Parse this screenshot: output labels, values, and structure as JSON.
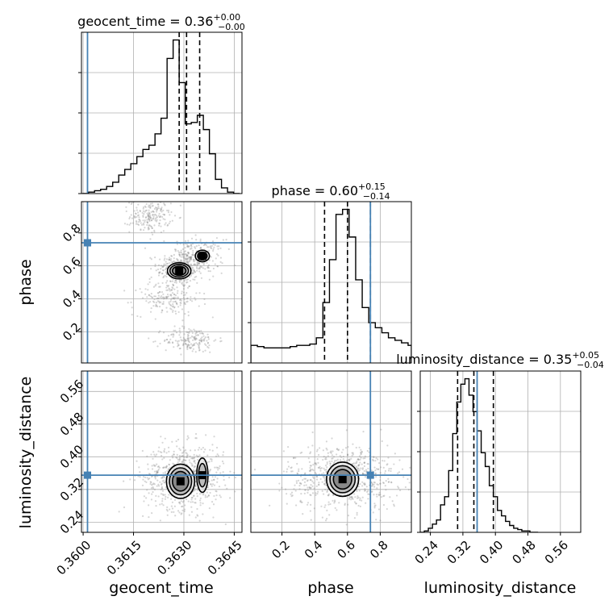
{
  "chart_data": {
    "type": "corner",
    "params": [
      "geocent_time",
      "phase",
      "luminosity_distance"
    ],
    "truths": [
      0.36013,
      0.74,
      0.355
    ],
    "truth_color": "#4682b4",
    "ranges": {
      "geocent_time": [
        0.35995,
        0.36473
      ],
      "phase": [
        0.01,
        0.99
      ],
      "luminosity_distance": [
        0.215,
        0.61
      ]
    },
    "ticks": {
      "geocent_time": [
        0.36,
        0.3615,
        0.363,
        0.3645
      ],
      "phase": [
        0.2,
        0.4,
        0.6,
        0.8
      ],
      "luminosity_distance": [
        0.24,
        0.32,
        0.4,
        0.48,
        0.56
      ]
    },
    "tick_labels": {
      "geocent_time": [
        "0.3600",
        "0.3615",
        "0.3630",
        "0.3645"
      ],
      "phase": [
        "0.2",
        "0.4",
        "0.6",
        "0.8"
      ],
      "luminosity_distance": [
        "0.24",
        "0.32",
        "0.40",
        "0.48",
        "0.56"
      ]
    },
    "axis_labels": {
      "x": [
        "geocent_time",
        "phase",
        "luminosity_distance"
      ],
      "y": [
        "phase",
        "luminosity_distance"
      ]
    },
    "titles": [
      {
        "param": "geocent_time",
        "median": "0.36",
        "plus": "+0.00",
        "minus": "−0.00"
      },
      {
        "param": "phase",
        "median": "0.60",
        "plus": "+0.15",
        "minus": "−0.14"
      },
      {
        "param": "luminosity_distance",
        "median": "0.35",
        "plus": "+0.05",
        "minus": "−0.04"
      }
    ],
    "quantiles": {
      "geocent_time": [
        0.36286,
        0.36308,
        0.36347
      ],
      "phase": [
        0.46,
        0.6,
        0.74
      ],
      "luminosity_distance": [
        0.307,
        0.347,
        0.395
      ]
    },
    "histograms": {
      "geocent_time": {
        "edges": [
          0.35998,
          0.36016,
          0.36034,
          0.36052,
          0.3607,
          0.36088,
          0.36106,
          0.36124,
          0.36142,
          0.3616,
          0.36178,
          0.36196,
          0.36214,
          0.36232,
          0.3625,
          0.36268,
          0.36286,
          0.36304,
          0.36322,
          0.3634,
          0.36358,
          0.36376,
          0.36394,
          0.36412,
          0.3643,
          0.36448,
          0.36466
        ],
        "counts": [
          0,
          1,
          2,
          3,
          5,
          8,
          13,
          17,
          21,
          26,
          31,
          34,
          42,
          53,
          95,
          108,
          78,
          49,
          50,
          55,
          45,
          28,
          10,
          4,
          1,
          0
        ]
      },
      "phase": {
        "edges": [
          0.01,
          0.05,
          0.09,
          0.13,
          0.17,
          0.21,
          0.25,
          0.29,
          0.33,
          0.37,
          0.41,
          0.45,
          0.49,
          0.53,
          0.57,
          0.61,
          0.65,
          0.69,
          0.73,
          0.77,
          0.81,
          0.85,
          0.89,
          0.93,
          0.97,
          0.99
        ],
        "counts": [
          14,
          13,
          12,
          12,
          12,
          12,
          13,
          14,
          14,
          15,
          20,
          48,
          82,
          118,
          122,
          100,
          66,
          44,
          32,
          28,
          24,
          20,
          18,
          16,
          14
        ]
      },
      "luminosity_distance": {
        "edges": [
          0.215,
          0.225,
          0.235,
          0.245,
          0.255,
          0.265,
          0.275,
          0.285,
          0.295,
          0.305,
          0.315,
          0.325,
          0.335,
          0.345,
          0.355,
          0.365,
          0.375,
          0.385,
          0.395,
          0.405,
          0.415,
          0.425,
          0.435,
          0.445,
          0.455,
          0.465,
          0.475,
          0.485,
          0.495,
          0.505
        ],
        "counts": [
          0,
          1,
          3,
          6,
          9,
          20,
          26,
          45,
          72,
          95,
          108,
          112,
          100,
          88,
          74,
          58,
          48,
          34,
          26,
          16,
          12,
          8,
          5,
          3,
          2,
          1,
          1,
          0,
          0
        ]
      }
    },
    "scatter_samples": [
      {
        "x": "geocent_time",
        "y": "phase",
        "modes": [
          {
            "cx": 0.3629,
            "cy": 0.58,
            "sx": 0.00035,
            "sy": 0.06,
            "n": 300
          },
          {
            "cx": 0.3634,
            "cy": 0.66,
            "sx": 0.0004,
            "sy": 0.05,
            "n": 200
          },
          {
            "cx": 0.362,
            "cy": 0.9,
            "sx": 0.0003,
            "sy": 0.05,
            "n": 200
          },
          {
            "cx": 0.3625,
            "cy": 0.4,
            "sx": 0.0005,
            "sy": 0.05,
            "n": 180
          },
          {
            "cx": 0.3632,
            "cy": 0.15,
            "sx": 0.0004,
            "sy": 0.04,
            "n": 180
          }
        ]
      },
      {
        "x": "geocent_time",
        "y": "luminosity_distance",
        "modes": [
          {
            "cx": 0.363,
            "cy": 0.35,
            "sx": 0.0006,
            "sy": 0.04,
            "n": 700
          }
        ]
      },
      {
        "x": "phase",
        "y": "luminosity_distance",
        "modes": [
          {
            "cx": 0.58,
            "cy": 0.35,
            "sx": 0.17,
            "sy": 0.04,
            "n": 700
          }
        ]
      }
    ],
    "density_peaks": [
      {
        "x": "geocent_time",
        "y": "phase",
        "cx": 0.36286,
        "cy": 0.57,
        "rx": 0.00025,
        "ry": 0.035,
        "levels": 3
      },
      {
        "x": "geocent_time",
        "y": "phase",
        "cx": 0.36355,
        "cy": 0.66,
        "rx": 0.00015,
        "ry": 0.025,
        "levels": 2
      },
      {
        "x": "geocent_time",
        "y": "luminosity_distance",
        "cx": 0.3629,
        "cy": 0.34,
        "rx": 0.0003,
        "ry": 0.03,
        "levels": 3
      },
      {
        "x": "geocent_time",
        "y": "luminosity_distance",
        "cx": 0.36355,
        "cy": 0.355,
        "rx": 0.00012,
        "ry": 0.03,
        "levels": 2
      },
      {
        "x": "phase",
        "y": "luminosity_distance",
        "cx": 0.57,
        "cy": 0.345,
        "rx": 0.07,
        "ry": 0.03,
        "levels": 3
      }
    ],
    "grid": true
  }
}
